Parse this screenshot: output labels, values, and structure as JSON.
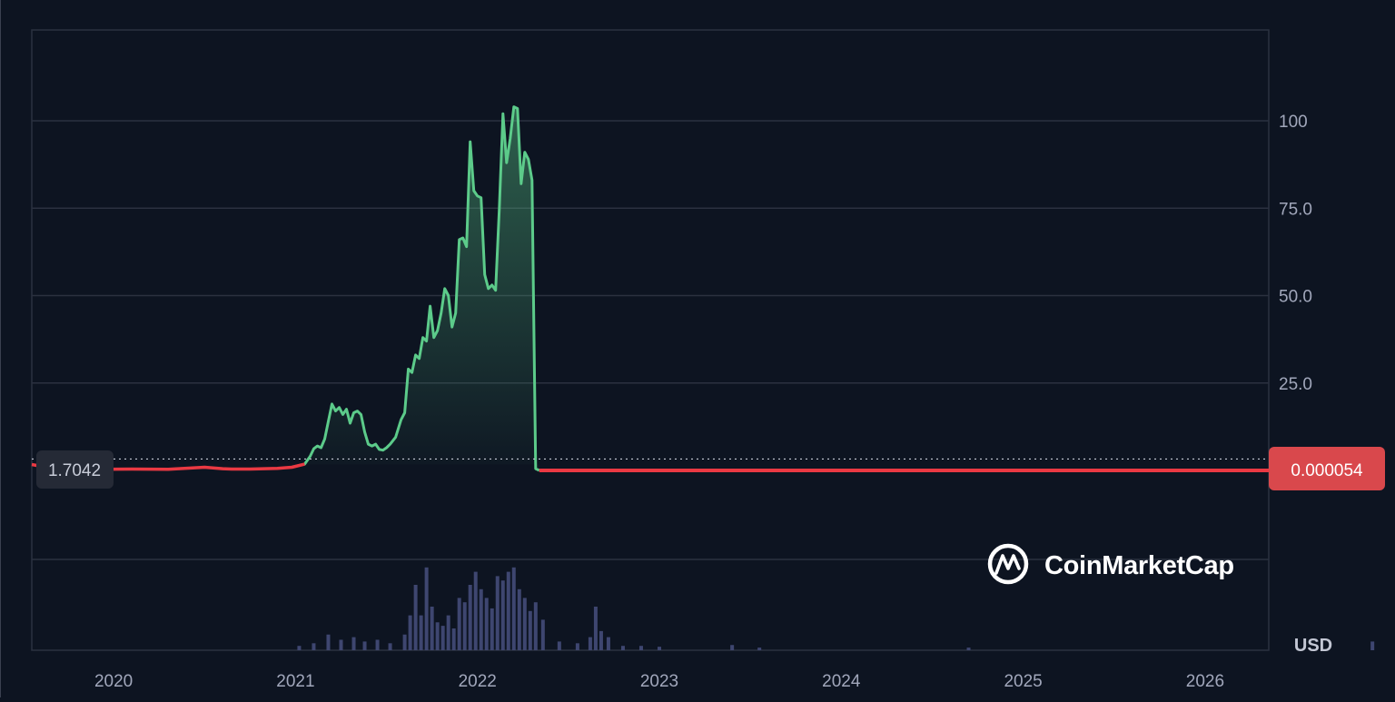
{
  "brand": {
    "name": "CoinMarketCap",
    "logo_icon": "coinmarketcap-logo-icon"
  },
  "currency_label": "USD",
  "reference_price_label": "1.7042",
  "current_price_label": "0.000054",
  "colors": {
    "background": "#0d1421",
    "grid": "#2b3140",
    "up_line": "#5ccb8a",
    "down_line": "#ea3943",
    "badge": "#d9484c",
    "volume": "#3e4670",
    "axis_text": "#a1a7bb"
  },
  "chart_data": {
    "type": "area",
    "title": "",
    "xlabel": "",
    "ylabel": "",
    "x_ticks": [
      "2020",
      "2021",
      "2022",
      "2023",
      "2024",
      "2025",
      "2026"
    ],
    "y_ticks": [
      "25.0",
      "50.0",
      "75.0",
      "100"
    ],
    "xlim": [
      2019.55,
      2026.35
    ],
    "ylim": [
      -25,
      125
    ],
    "grid": true,
    "reference_value": 1.7042,
    "last_value": 5.4e-05,
    "series": [
      {
        "x": [
          2019.55,
          2019.7,
          2019.9,
          2020.1,
          2020.3,
          2020.5,
          2020.6,
          2020.65,
          2020.75,
          2020.9,
          2020.98,
          2021.05,
          2021.08,
          2021.1,
          2021.12,
          2021.14,
          2021.16,
          2021.18,
          2021.2,
          2021.22,
          2021.24,
          2021.26,
          2021.28,
          2021.3,
          2021.32,
          2021.34,
          2021.36,
          2021.38,
          2021.4,
          2021.42,
          2021.44,
          2021.46,
          2021.48,
          2021.5,
          2021.52,
          2021.55,
          2021.58,
          2021.6,
          2021.62,
          2021.64,
          2021.66,
          2021.68,
          2021.7,
          2021.72,
          2021.74,
          2021.76,
          2021.78,
          2021.8,
          2021.82,
          2021.84,
          2021.86,
          2021.88,
          2021.9,
          2021.92,
          2021.94,
          2021.96,
          2021.98,
          2022.0,
          2022.02,
          2022.04,
          2022.06,
          2022.08,
          2022.1,
          2022.12,
          2022.14,
          2022.16,
          2022.18,
          2022.2,
          2022.22,
          2022.24,
          2022.26,
          2022.28,
          2022.3,
          2022.32,
          2022.34,
          2022.36,
          2022.38,
          2022.39,
          2023.0,
          2024.0,
          2025.0,
          2026.0,
          2026.35
        ],
        "values": [
          1.7,
          0.2,
          0.3,
          0.4,
          0.3,
          0.9,
          0.5,
          0.4,
          0.4,
          0.6,
          0.9,
          1.8,
          4.0,
          6.2,
          7.0,
          6.5,
          9.0,
          14.0,
          19.0,
          17.0,
          18.0,
          16.0,
          17.5,
          13.5,
          16.5,
          17.0,
          16.0,
          11.0,
          7.5,
          7.0,
          7.5,
          6.0,
          5.8,
          6.5,
          7.5,
          9.5,
          14.5,
          16.5,
          29.0,
          28.0,
          33.0,
          32.0,
          38.0,
          37.0,
          47.0,
          38.0,
          40.0,
          45.0,
          52.0,
          50.0,
          41.0,
          45.0,
          66.0,
          66.5,
          64.0,
          94.0,
          80.0,
          78.5,
          78.0,
          56.0,
          52.0,
          53.0,
          51.5,
          75.0,
          102.0,
          88.0,
          95.0,
          104.0,
          103.5,
          82.0,
          91.0,
          89.0,
          83.0,
          0.5,
          0.0005,
          0.0003,
          0.0002,
          0.0001,
          0.0001,
          8e-05,
          6e-05,
          5e-05,
          5.4e-05
        ]
      }
    ],
    "volume": {
      "x": [
        2021.02,
        2021.1,
        2021.18,
        2021.25,
        2021.32,
        2021.38,
        2021.45,
        2021.52,
        2021.6,
        2021.63,
        2021.66,
        2021.69,
        2021.72,
        2021.75,
        2021.78,
        2021.81,
        2021.84,
        2021.87,
        2021.9,
        2021.93,
        2021.96,
        2021.99,
        2022.02,
        2022.05,
        2022.08,
        2022.11,
        2022.14,
        2022.17,
        2022.2,
        2022.23,
        2022.26,
        2022.29,
        2022.32,
        2022.36,
        2022.45,
        2022.55,
        2022.62,
        2022.65,
        2022.68,
        2022.72,
        2022.8,
        2022.9,
        2023.0,
        2023.4,
        2023.55,
        2024.7,
        2026.92
      ],
      "values": [
        5,
        8,
        18,
        12,
        15,
        10,
        12,
        8,
        18,
        40,
        75,
        40,
        95,
        50,
        32,
        28,
        40,
        25,
        60,
        55,
        75,
        90,
        70,
        60,
        48,
        85,
        80,
        90,
        95,
        70,
        60,
        45,
        55,
        35,
        10,
        8,
        15,
        50,
        22,
        15,
        5,
        5,
        4,
        6,
        3,
        3,
        10
      ]
    }
  }
}
